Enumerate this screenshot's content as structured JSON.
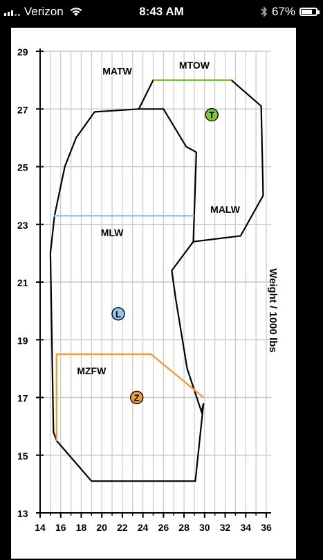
{
  "status_bar": {
    "carrier": "Verizon",
    "time": "8:43 AM",
    "battery": "67%",
    "battery_level": 0.67,
    "icons": [
      "signal-icon",
      "wifi-icon",
      "bluetooth-icon",
      "battery-icon"
    ]
  },
  "chart_data": {
    "type": "line",
    "title": "",
    "xlabel": "",
    "ylabel": "Weight / 1000 lbs",
    "xlim": [
      14,
      36
    ],
    "ylim": [
      13,
      29
    ],
    "x_ticks": [
      "14",
      "16",
      "18",
      "20",
      "22",
      "24",
      "26",
      "28",
      "30",
      "32",
      "34",
      "36"
    ],
    "y_ticks": [
      "13",
      "15",
      "17",
      "19",
      "21",
      "23",
      "25",
      "27",
      "29"
    ],
    "grid": true,
    "series": [
      {
        "color": "#000000",
        "points": [
          [
            15.6,
            15.5
          ],
          [
            15.3,
            15.8
          ],
          [
            15.0,
            22.0
          ],
          [
            15.4,
            23.3
          ],
          [
            16.4,
            25.0
          ],
          [
            17.5,
            26.0
          ],
          [
            19.3,
            26.9
          ],
          [
            23.6,
            27.0
          ],
          [
            26.0,
            27.0
          ],
          [
            28.2,
            25.7
          ],
          [
            29.2,
            25.5
          ],
          [
            28.9,
            22.4
          ],
          [
            26.8,
            21.4
          ],
          [
            27.2,
            20.4
          ],
          [
            28.3,
            18.0
          ],
          [
            29.7,
            16.5
          ],
          [
            29.9,
            16.8
          ],
          [
            29.1,
            14.1
          ],
          [
            19.0,
            14.1
          ],
          [
            15.6,
            15.5
          ]
        ]
      },
      {
        "color": "#000000",
        "points": [
          [
            23.6,
            27.0
          ],
          [
            25.0,
            28.0
          ],
          [
            32.6,
            28.0
          ],
          [
            35.5,
            27.1
          ],
          [
            35.7,
            24.0
          ],
          [
            33.5,
            22.6
          ],
          [
            28.9,
            22.4
          ]
        ]
      },
      {
        "name": "MTOW",
        "color": "#7fcc2e",
        "points": [
          [
            25.0,
            28.0
          ],
          [
            32.6,
            28.0
          ]
        ]
      },
      {
        "name": "MLW",
        "color": "#8ec6ec",
        "points": [
          [
            15.3,
            23.3
          ],
          [
            29.0,
            23.3
          ]
        ]
      },
      {
        "name": "MZFW",
        "color": "#f0a030",
        "points": [
          [
            15.6,
            15.5
          ],
          [
            15.6,
            18.5
          ],
          [
            24.8,
            18.5
          ],
          [
            29.9,
            17.0
          ]
        ]
      }
    ],
    "annotations": [
      {
        "text": "MATW",
        "x": 21.5,
        "y": 28.2
      },
      {
        "text": "MTOW",
        "x": 29.0,
        "y": 28.4
      },
      {
        "text": "MALW",
        "x": 32.0,
        "y": 23.4
      },
      {
        "text": "MLW",
        "x": 21.0,
        "y": 22.6
      },
      {
        "text": "MZFW",
        "x": 19.0,
        "y": 17.8
      }
    ],
    "markers": [
      {
        "label": "T",
        "x": 30.7,
        "y": 26.8,
        "color": "#7fcc2e"
      },
      {
        "label": "L",
        "x": 21.6,
        "y": 19.9,
        "color": "#8ec6ec"
      },
      {
        "label": "Z",
        "x": 23.4,
        "y": 17.0,
        "color": "#f0a030"
      }
    ]
  }
}
